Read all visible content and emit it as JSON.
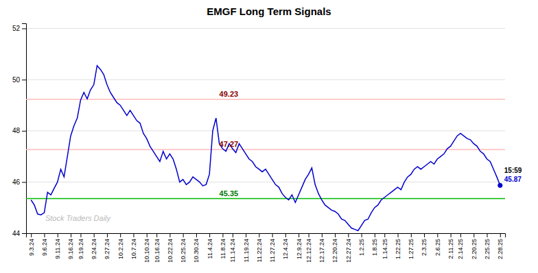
{
  "chart_data": {
    "type": "line",
    "title": "EMGF Long Term Signals",
    "categories": [
      "9.3.24",
      null,
      null,
      null,
      "9.6.24",
      null,
      null,
      null,
      "9.11.24",
      null,
      null,
      null,
      "9.16.24",
      null,
      null,
      "9.19.24",
      null,
      null,
      null,
      "9.24.24",
      null,
      null,
      null,
      "9.27.24",
      null,
      null,
      null,
      "10.2.24",
      null,
      null,
      null,
      "10.7.24",
      null,
      null,
      null,
      "10.10.24",
      null,
      null,
      "10.16.24",
      null,
      null,
      null,
      "10.22.24",
      null,
      null,
      null,
      "10.25.24",
      null,
      null,
      null,
      "10.30.24",
      null,
      null,
      null,
      "11.4.24",
      null,
      null,
      null,
      "11.8.24",
      null,
      null,
      "11.14.24",
      null,
      null,
      null,
      "11.19.24",
      null,
      null,
      null,
      "11.22.24",
      null,
      null,
      null,
      "11.27.24",
      null,
      null,
      null,
      "12.4.24",
      null,
      null,
      null,
      "12.9.24",
      null,
      null,
      "12.12.24",
      null,
      null,
      null,
      "12.17.24",
      null,
      null,
      null,
      "12.20.24",
      null,
      null,
      null,
      "12.27.24",
      null,
      null,
      null,
      "1.2.25",
      null,
      null,
      null,
      "1.8.25",
      null,
      null,
      "1.14.25",
      null,
      null,
      null,
      "1.22.25",
      null,
      null,
      null,
      "1.27.25",
      null,
      null,
      null,
      "2.3.25",
      null,
      null,
      null,
      "2.6.25",
      null,
      null,
      null,
      "2.11.25",
      null,
      null,
      "2.14.25",
      null,
      null,
      null,
      "2.20.25",
      null,
      null,
      null,
      "2.25.25",
      null,
      null,
      null,
      "2.28.25"
    ],
    "values": [
      45.3,
      45.1,
      44.75,
      44.72,
      44.8,
      45.6,
      45.5,
      45.75,
      46.0,
      46.5,
      46.2,
      47.0,
      47.8,
      48.2,
      48.5,
      49.2,
      49.5,
      49.25,
      49.6,
      49.8,
      50.55,
      50.4,
      50.2,
      49.8,
      49.5,
      49.3,
      49.1,
      49.0,
      48.8,
      48.6,
      48.8,
      48.6,
      48.4,
      48.3,
      47.9,
      47.7,
      47.4,
      47.2,
      47.0,
      46.8,
      47.2,
      46.9,
      47.1,
      46.9,
      46.5,
      46.0,
      46.1,
      45.9,
      46.0,
      46.2,
      46.1,
      46.0,
      45.85,
      45.9,
      46.3,
      48.0,
      48.5,
      47.5,
      47.3,
      47.2,
      47.5,
      47.3,
      47.15,
      47.5,
      47.3,
      47.1,
      46.9,
      46.8,
      46.6,
      46.5,
      46.4,
      46.5,
      46.3,
      46.1,
      45.9,
      45.8,
      45.55,
      45.4,
      45.3,
      45.5,
      45.2,
      45.5,
      45.8,
      46.1,
      46.3,
      46.55,
      45.9,
      45.55,
      45.3,
      45.1,
      45.0,
      44.9,
      44.85,
      44.75,
      44.55,
      44.5,
      44.35,
      44.2,
      44.15,
      44.1,
      44.3,
      44.5,
      44.55,
      44.8,
      45.0,
      45.1,
      45.3,
      45.4,
      45.5,
      45.6,
      45.7,
      45.8,
      45.7,
      46.0,
      46.2,
      46.3,
      46.5,
      46.6,
      46.5,
      46.6,
      46.7,
      46.8,
      46.7,
      46.9,
      47.0,
      47.1,
      47.3,
      47.4,
      47.6,
      47.8,
      47.9,
      47.8,
      47.7,
      47.65,
      47.5,
      47.4,
      47.2,
      47.1,
      46.9,
      46.8,
      46.5,
      46.2,
      45.87
    ],
    "color": "#0000cc",
    "ylim": [
      44.0,
      52.2
    ],
    "yticks": [
      44,
      46,
      48,
      50,
      52
    ],
    "grid": true,
    "reference_lines": [
      {
        "value": 49.23,
        "label": "49.23",
        "color": "#ffbbbb",
        "label_color": "#880000"
      },
      {
        "value": 47.27,
        "label": "47.27",
        "color": "#ffbbbb",
        "label_color": "#880000"
      },
      {
        "value": 45.35,
        "label": "45.35",
        "color": "#00bb00",
        "label_color": "#007700"
      }
    ],
    "last_point": {
      "value": 45.87,
      "label": "45.87",
      "time": "15:59"
    },
    "watermark": "Stock Traders Daily"
  }
}
